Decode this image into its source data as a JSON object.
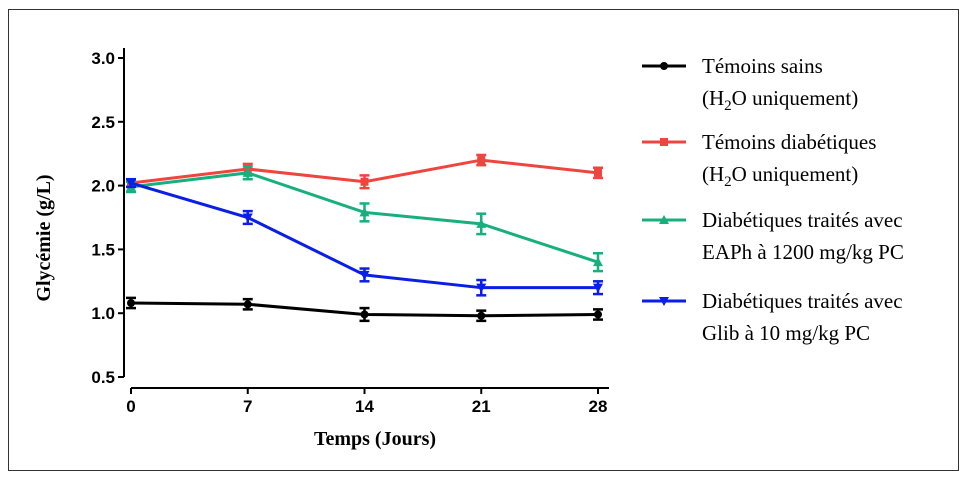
{
  "chart_data": {
    "type": "line",
    "title": "",
    "xlabel": "Temps (Jours)",
    "ylabel": "Glycémie (g/L)",
    "x": [
      0,
      7,
      14,
      21,
      28
    ],
    "x_ticks": [
      "0",
      "7",
      "14",
      "21",
      "28"
    ],
    "y_ticks": [
      "0.5",
      "1.0",
      "1.5",
      "2.0",
      "2.5",
      "3.0"
    ],
    "xlim": [
      0,
      28
    ],
    "ylim": [
      0.5,
      3.0
    ],
    "grid": false,
    "legend_position": "right",
    "series": [
      {
        "name": "Témoins sains (H₂O uniquement)",
        "legend_lines": [
          "Témoins sains",
          "(H₂O uniquement)"
        ],
        "color": "#000000",
        "marker": "circle",
        "values": [
          1.08,
          1.07,
          0.99,
          0.98,
          0.99
        ],
        "errors": [
          0.04,
          0.04,
          0.05,
          0.04,
          0.04
        ]
      },
      {
        "name": "Témoins diabétiques (H₂O uniquement)",
        "legend_lines": [
          "Témoins diabétiques",
          "(H₂O uniquement)"
        ],
        "color": "#f0443f",
        "marker": "square",
        "values": [
          2.02,
          2.13,
          2.03,
          2.2,
          2.1
        ],
        "errors": [
          0.03,
          0.04,
          0.05,
          0.04,
          0.04
        ]
      },
      {
        "name": "Diabétiques traités avec EAPh à 1200 mg/kg PC",
        "legend_lines": [
          "Diabétiques traités avec",
          "EAPh à 1200 mg/kg PC"
        ],
        "color": "#17b07d",
        "marker": "triangle-up",
        "values": [
          1.99,
          2.1,
          1.79,
          1.7,
          1.4
        ],
        "errors": [
          0.04,
          0.05,
          0.07,
          0.08,
          0.07
        ]
      },
      {
        "name": "Diabétiques traités avec Glib à 10 mg/kg PC",
        "legend_lines": [
          "Diabétiques traités avec",
          "Glib à 10 mg/kg PC"
        ],
        "color": "#0a1ee8",
        "marker": "triangle-down",
        "values": [
          2.02,
          1.75,
          1.3,
          1.2,
          1.2
        ],
        "errors": [
          0.03,
          0.05,
          0.05,
          0.06,
          0.05
        ]
      }
    ]
  }
}
